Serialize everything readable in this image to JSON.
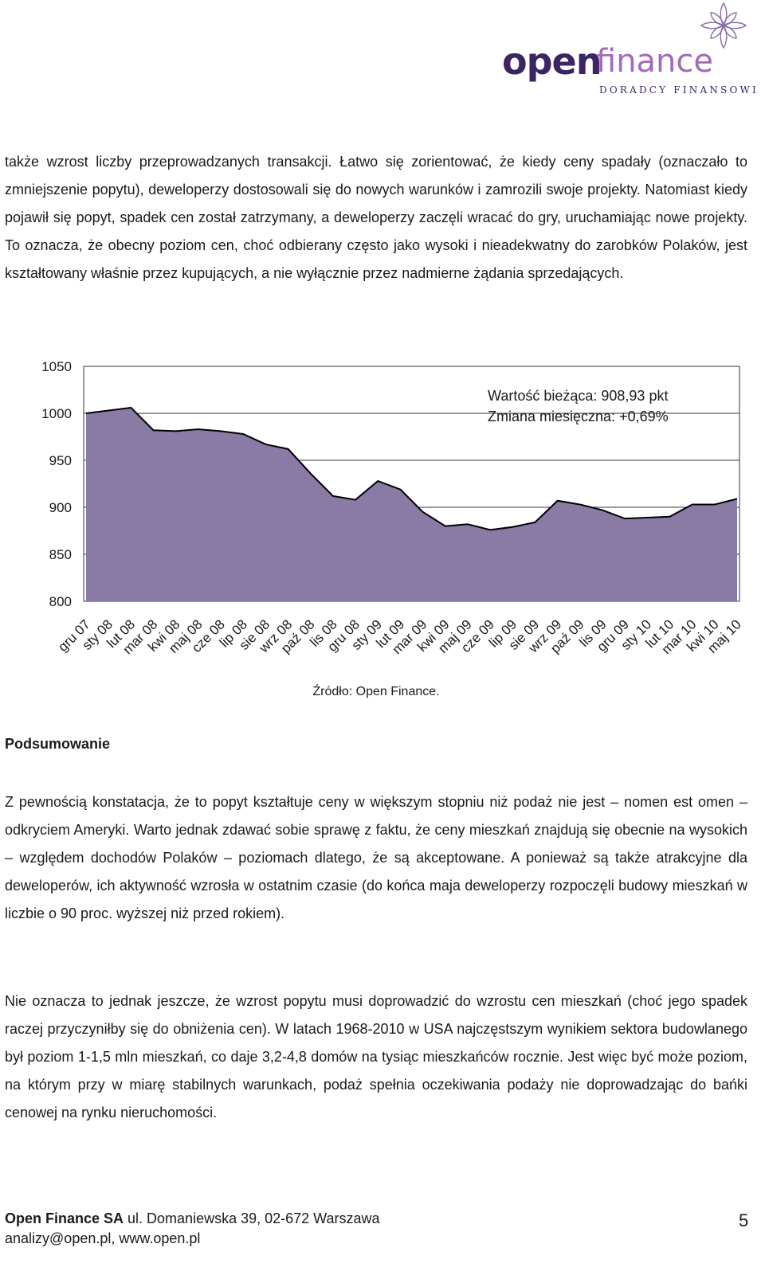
{
  "logo": {
    "brand_bold": "open",
    "brand_light": "finance",
    "tagline": "DORADCY FINANSOWI"
  },
  "paragraphs": {
    "intro": "także wzrost liczby przeprowadzanych transakcji. Łatwo się zorientować, że kiedy ceny spadały (oznaczało to zmniejszenie popytu), deweloperzy dostosowali się do nowych warunków i zamrozili swoje projekty. Natomiast kiedy pojawił się popyt, spadek cen został zatrzymany, a deweloperzy zaczęli wracać do gry, uruchamiając nowe projekty. To oznacza, że obecny poziom cen, choć odbierany często jako wysoki i nieadekwatny do zarobków Polaków, jest kształtowany właśnie przez kupujących, a nie wyłącznie przez nadmierne żądania sprzedających.",
    "summary_heading": "Podsumowanie",
    "summary_1": "Z pewnością konstatacja, że to popyt kształtuje ceny w większym stopniu niż podaż nie jest – nomen est omen – odkryciem Ameryki. Warto jednak zdawać sobie sprawę z faktu, że ceny mieszkań znajdują się obecnie na wysokich – względem dochodów Polaków – poziomach dlatego, że są akceptowane. A ponieważ są także atrakcyjne dla deweloperów, ich aktywność wzrosła w ostatnim czasie (do końca maja deweloperzy rozpoczęli budowy mieszkań w liczbie o 90 proc. wyższej niż przed rokiem).",
    "summary_2": "Nie oznacza to jednak jeszcze, że wzrost popytu musi doprowadzić do wzrostu cen mieszkań (choć jego spadek raczej przyczyniłby się do obniżenia cen). W latach 1968-2010 w USA najczęstszym wynikiem sektora budowlanego był poziom 1-1,5 mln mieszkań, co daje 3,2-4,8 domów na tysiąc mieszkańców rocznie. Jest więc być może poziom, na którym przy w miarę stabilnych warunkach, podaż spełnia oczekiwania podaży nie doprowadzając do bańki cenowej na rynku nieruchomości."
  },
  "chart_data": {
    "type": "area",
    "title": "",
    "xlabel": "",
    "ylabel": "",
    "ylim": [
      800,
      1050
    ],
    "yticks": [
      "1050",
      "1000",
      "950",
      "900",
      "850",
      "800"
    ],
    "grid": true,
    "fill_color": "#8a7aa6",
    "categories": [
      "gru 07",
      "sty 08",
      "lut 08",
      "mar 08",
      "kwi 08",
      "maj 08",
      "cze 08",
      "lip 08",
      "sie 08",
      "wrz 08",
      "paź 08",
      "lis 08",
      "gru 08",
      "sty 09",
      "lut 09",
      "mar 09",
      "kwi 09",
      "maj 09",
      "cze 09",
      "lip 09",
      "sie 09",
      "wrz 09",
      "paź 09",
      "lis 09",
      "gru 09",
      "sty 10",
      "lut 10",
      "mar 10",
      "kwi 10",
      "maj 10"
    ],
    "values": [
      1000,
      1003,
      1006,
      982,
      981,
      983,
      981,
      978,
      967,
      962,
      936,
      912,
      908,
      928,
      919,
      895,
      880,
      882,
      876,
      879,
      884,
      907,
      903,
      897,
      888,
      889,
      890,
      903,
      903,
      909
    ],
    "annotation_line1": "Wartość bieżąca: 908,93 pkt",
    "annotation_line2": "Zmiana miesięczna: +0,69%"
  },
  "source": "Źródło: Open Finance.",
  "footer": {
    "company": "Open Finance SA",
    "address": " ul. Domaniewska 39, 02-672 Warszawa",
    "contact": "analizy@open.pl, www.open.pl",
    "page_number": "5"
  }
}
